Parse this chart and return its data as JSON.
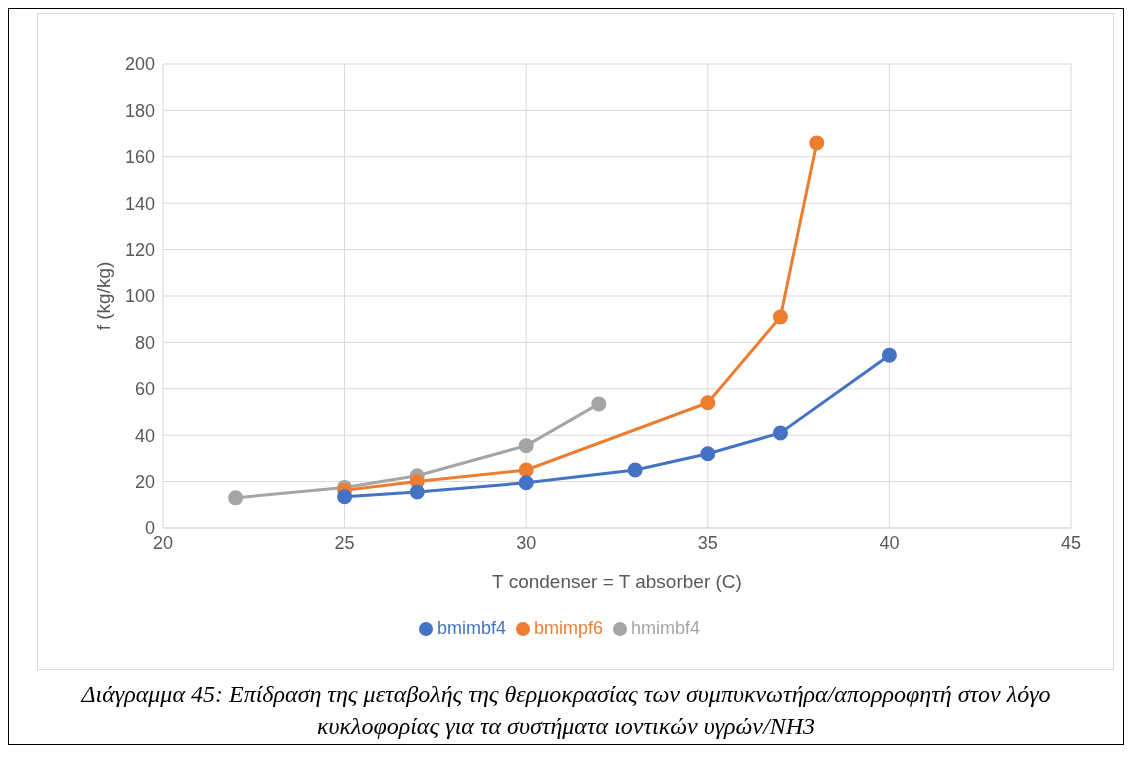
{
  "chart_data": {
    "type": "line",
    "xlabel": "T condenser = T absorber (C)",
    "ylabel": "f (kg/kg)",
    "xlim": [
      20,
      45
    ],
    "xticks": [
      20,
      25,
      30,
      35,
      40,
      45
    ],
    "ylim": [
      0,
      200
    ],
    "yticks": [
      0,
      20,
      40,
      60,
      80,
      100,
      120,
      140,
      160,
      180,
      200
    ],
    "grid": true,
    "legend": "bottom",
    "marker": "circle",
    "line_style": "solid",
    "series": [
      {
        "name": "bmimbf4",
        "color": "#4472c4",
        "x": [
          25,
          27,
          30,
          33,
          35,
          37,
          40
        ],
        "values": [
          13.5,
          15.5,
          19.5,
          25,
          32,
          41,
          74.5
        ]
      },
      {
        "name": "bmimpf6",
        "color": "#ed7d31",
        "x": [
          25,
          27,
          30,
          35,
          37,
          38
        ],
        "values": [
          16.3,
          20,
          25,
          54,
          91,
          166
        ]
      },
      {
        "name": "hmimbf4",
        "color": "#a5a5a5",
        "x": [
          22,
          25,
          27,
          30,
          32
        ],
        "values": [
          13,
          17.5,
          22.5,
          35.5,
          53.5
        ]
      }
    ],
    "annotations": [
      "Διάγραμμα 45: Επίδραση της μεταβολής της θερμοκρασίας των συμπυκνωτήρα/απορροφητή στον λόγο κυκλοφορίας για τα συστήματα ιοντικών υγρών/NH3"
    ]
  }
}
